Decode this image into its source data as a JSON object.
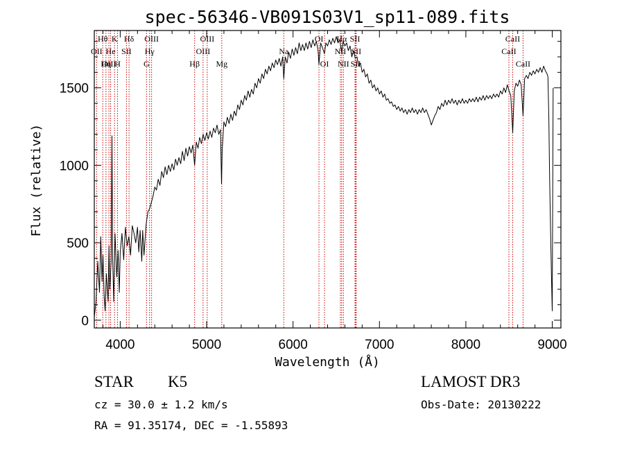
{
  "chart_data": {
    "type": "line",
    "title": "spec-56346-VB091S03V1_sp11-089.fits",
    "xlabel": "Wavelength (Å)",
    "ylabel": "Flux (relative)",
    "xlim": [
      3700,
      9100
    ],
    "ylim": [
      -50,
      1870
    ],
    "xticks": [
      4000,
      5000,
      6000,
      7000,
      8000,
      9000
    ],
    "yticks": [
      0,
      500,
      1000,
      1500
    ],
    "x_minor_step": 200,
    "y_minor_step": 100,
    "series": [
      {
        "name": "flux",
        "points": [
          [
            3700,
            20
          ],
          [
            3720,
            120
          ],
          [
            3740,
            380
          ],
          [
            3760,
            180
          ],
          [
            3775,
            540
          ],
          [
            3790,
            250
          ],
          [
            3800,
            420
          ],
          [
            3815,
            150
          ],
          [
            3825,
            60
          ],
          [
            3840,
            300
          ],
          [
            3860,
            120
          ],
          [
            3870,
            480
          ],
          [
            3880,
            200
          ],
          [
            3895,
            380
          ],
          [
            3905,
            1190
          ],
          [
            3912,
            420
          ],
          [
            3925,
            120
          ],
          [
            3940,
            560
          ],
          [
            3960,
            280
          ],
          [
            3975,
            450
          ],
          [
            3990,
            180
          ],
          [
            4000,
            440
          ],
          [
            4020,
            560
          ],
          [
            4040,
            390
          ],
          [
            4060,
            600
          ],
          [
            4080,
            480
          ],
          [
            4100,
            540
          ],
          [
            4120,
            420
          ],
          [
            4140,
            610
          ],
          [
            4160,
            560
          ],
          [
            4180,
            500
          ],
          [
            4200,
            600
          ],
          [
            4215,
            440
          ],
          [
            4230,
            580
          ],
          [
            4250,
            380
          ],
          [
            4260,
            580
          ],
          [
            4275,
            420
          ],
          [
            4290,
            540
          ],
          [
            4300,
            620
          ],
          [
            4320,
            700
          ],
          [
            4340,
            720
          ],
          [
            4360,
            760
          ],
          [
            4380,
            800
          ],
          [
            4400,
            860
          ],
          [
            4420,
            840
          ],
          [
            4440,
            910
          ],
          [
            4460,
            870
          ],
          [
            4480,
            960
          ],
          [
            4500,
            920
          ],
          [
            4520,
            990
          ],
          [
            4540,
            940
          ],
          [
            4560,
            1000
          ],
          [
            4580,
            960
          ],
          [
            4600,
            1010
          ],
          [
            4620,
            970
          ],
          [
            4640,
            1040
          ],
          [
            4660,
            1000
          ],
          [
            4680,
            1050
          ],
          [
            4700,
            1010
          ],
          [
            4720,
            1090
          ],
          [
            4740,
            1030
          ],
          [
            4760,
            1110
          ],
          [
            4780,
            1060
          ],
          [
            4800,
            1120
          ],
          [
            4820,
            1080
          ],
          [
            4840,
            1130
          ],
          [
            4861,
            1000
          ],
          [
            4880,
            1150
          ],
          [
            4900,
            1110
          ],
          [
            4920,
            1180
          ],
          [
            4940,
            1140
          ],
          [
            4960,
            1200
          ],
          [
            4980,
            1160
          ],
          [
            5000,
            1210
          ],
          [
            5020,
            1170
          ],
          [
            5040,
            1220
          ],
          [
            5060,
            1180
          ],
          [
            5080,
            1240
          ],
          [
            5100,
            1210
          ],
          [
            5120,
            1260
          ],
          [
            5140,
            1200
          ],
          [
            5160,
            1230
          ],
          [
            5172,
            880
          ],
          [
            5180,
            1100
          ],
          [
            5200,
            1280
          ],
          [
            5220,
            1250
          ],
          [
            5240,
            1310
          ],
          [
            5260,
            1270
          ],
          [
            5280,
            1330
          ],
          [
            5300,
            1290
          ],
          [
            5320,
            1350
          ],
          [
            5340,
            1320
          ],
          [
            5360,
            1390
          ],
          [
            5380,
            1360
          ],
          [
            5400,
            1420
          ],
          [
            5420,
            1390
          ],
          [
            5440,
            1450
          ],
          [
            5460,
            1420
          ],
          [
            5480,
            1480
          ],
          [
            5500,
            1440
          ],
          [
            5520,
            1490
          ],
          [
            5540,
            1460
          ],
          [
            5560,
            1530
          ],
          [
            5580,
            1500
          ],
          [
            5600,
            1560
          ],
          [
            5620,
            1530
          ],
          [
            5640,
            1590
          ],
          [
            5660,
            1560
          ],
          [
            5680,
            1620
          ],
          [
            5700,
            1590
          ],
          [
            5720,
            1640
          ],
          [
            5740,
            1610
          ],
          [
            5760,
            1660
          ],
          [
            5780,
            1630
          ],
          [
            5800,
            1680
          ],
          [
            5820,
            1650
          ],
          [
            5840,
            1690
          ],
          [
            5860,
            1640
          ],
          [
            5880,
            1700
          ],
          [
            5893,
            1560
          ],
          [
            5910,
            1700
          ],
          [
            5930,
            1660
          ],
          [
            5950,
            1730
          ],
          [
            5970,
            1690
          ],
          [
            5990,
            1750
          ],
          [
            6010,
            1710
          ],
          [
            6030,
            1760
          ],
          [
            6050,
            1720
          ],
          [
            6070,
            1790
          ],
          [
            6090,
            1740
          ],
          [
            6110,
            1780
          ],
          [
            6130,
            1740
          ],
          [
            6150,
            1790
          ],
          [
            6170,
            1750
          ],
          [
            6190,
            1800
          ],
          [
            6210,
            1760
          ],
          [
            6230,
            1810
          ],
          [
            6250,
            1770
          ],
          [
            6270,
            1800
          ],
          [
            6290,
            1740
          ],
          [
            6300,
            1650
          ],
          [
            6320,
            1790
          ],
          [
            6340,
            1760
          ],
          [
            6364,
            1720
          ],
          [
            6380,
            1790
          ],
          [
            6400,
            1770
          ],
          [
            6420,
            1810
          ],
          [
            6440,
            1780
          ],
          [
            6460,
            1820
          ],
          [
            6480,
            1790
          ],
          [
            6500,
            1830
          ],
          [
            6520,
            1790
          ],
          [
            6540,
            1810
          ],
          [
            6563,
            1730
          ],
          [
            6580,
            1800
          ],
          [
            6600,
            1770
          ],
          [
            6620,
            1790
          ],
          [
            6640,
            1740
          ],
          [
            6660,
            1770
          ],
          [
            6680,
            1700
          ],
          [
            6700,
            1740
          ],
          [
            6720,
            1690
          ],
          [
            6740,
            1700
          ],
          [
            6760,
            1640
          ],
          [
            6780,
            1660
          ],
          [
            6800,
            1600
          ],
          [
            6820,
            1620
          ],
          [
            6840,
            1570
          ],
          [
            6860,
            1590
          ],
          [
            6880,
            1530
          ],
          [
            6900,
            1550
          ],
          [
            6920,
            1500
          ],
          [
            6940,
            1520
          ],
          [
            6960,
            1480
          ],
          [
            6980,
            1500
          ],
          [
            7000,
            1460
          ],
          [
            7020,
            1480
          ],
          [
            7040,
            1440
          ],
          [
            7060,
            1460
          ],
          [
            7080,
            1420
          ],
          [
            7100,
            1430
          ],
          [
            7120,
            1400
          ],
          [
            7140,
            1410
          ],
          [
            7160,
            1380
          ],
          [
            7180,
            1390
          ],
          [
            7200,
            1360
          ],
          [
            7220,
            1380
          ],
          [
            7240,
            1350
          ],
          [
            7260,
            1370
          ],
          [
            7280,
            1340
          ],
          [
            7300,
            1360
          ],
          [
            7320,
            1330
          ],
          [
            7340,
            1360
          ],
          [
            7360,
            1340
          ],
          [
            7380,
            1370
          ],
          [
            7400,
            1340
          ],
          [
            7420,
            1360
          ],
          [
            7440,
            1330
          ],
          [
            7460,
            1360
          ],
          [
            7480,
            1340
          ],
          [
            7500,
            1370
          ],
          [
            7520,
            1340
          ],
          [
            7540,
            1360
          ],
          [
            7560,
            1330
          ],
          [
            7580,
            1300
          ],
          [
            7600,
            1260
          ],
          [
            7620,
            1290
          ],
          [
            7640,
            1320
          ],
          [
            7660,
            1340
          ],
          [
            7680,
            1380
          ],
          [
            7700,
            1360
          ],
          [
            7720,
            1400
          ],
          [
            7740,
            1380
          ],
          [
            7760,
            1420
          ],
          [
            7780,
            1390
          ],
          [
            7800,
            1420
          ],
          [
            7820,
            1400
          ],
          [
            7840,
            1430
          ],
          [
            7860,
            1400
          ],
          [
            7880,
            1420
          ],
          [
            7900,
            1390
          ],
          [
            7920,
            1420
          ],
          [
            7940,
            1400
          ],
          [
            7960,
            1430
          ],
          [
            7980,
            1400
          ],
          [
            8000,
            1420
          ],
          [
            8020,
            1400
          ],
          [
            8040,
            1430
          ],
          [
            8060,
            1410
          ],
          [
            8080,
            1430
          ],
          [
            8100,
            1410
          ],
          [
            8120,
            1440
          ],
          [
            8140,
            1410
          ],
          [
            8160,
            1440
          ],
          [
            8180,
            1420
          ],
          [
            8200,
            1450
          ],
          [
            8220,
            1420
          ],
          [
            8240,
            1450
          ],
          [
            8260,
            1430
          ],
          [
            8280,
            1450
          ],
          [
            8300,
            1430
          ],
          [
            8320,
            1460
          ],
          [
            8340,
            1440
          ],
          [
            8360,
            1460
          ],
          [
            8380,
            1440
          ],
          [
            8400,
            1480
          ],
          [
            8420,
            1460
          ],
          [
            8440,
            1500
          ],
          [
            8460,
            1470
          ],
          [
            8480,
            1520
          ],
          [
            8500,
            1480
          ],
          [
            8520,
            1450
          ],
          [
            8542,
            1210
          ],
          [
            8560,
            1480
          ],
          [
            8580,
            1530
          ],
          [
            8600,
            1510
          ],
          [
            8620,
            1550
          ],
          [
            8640,
            1520
          ],
          [
            8662,
            1320
          ],
          [
            8680,
            1560
          ],
          [
            8700,
            1580
          ],
          [
            8720,
            1560
          ],
          [
            8740,
            1600
          ],
          [
            8760,
            1580
          ],
          [
            8780,
            1610
          ],
          [
            8800,
            1590
          ],
          [
            8820,
            1620
          ],
          [
            8840,
            1600
          ],
          [
            8860,
            1630
          ],
          [
            8880,
            1600
          ],
          [
            8900,
            1640
          ],
          [
            8920,
            1610
          ],
          [
            8940,
            1590
          ],
          [
            8950,
            1570
          ],
          [
            8960,
            1300
          ],
          [
            8970,
            900
          ],
          [
            8980,
            600
          ],
          [
            8990,
            300
          ],
          [
            9000,
            60
          ],
          [
            9010,
            1500
          ]
        ]
      }
    ],
    "lines": [
      {
        "label": "Hθ",
        "x": 3798,
        "row": 0
      },
      {
        "label": "OII",
        "x": 3727,
        "row": 1
      },
      {
        "label": "OIII",
        "x": 3869,
        "row": 2
      },
      {
        "label": "He",
        "x": 3889,
        "row": 1
      },
      {
        "label": "Hη",
        "x": 3835,
        "row": 2
      },
      {
        "label": "K",
        "x": 3934,
        "row": 0
      },
      {
        "label": "SII",
        "x": 4072,
        "row": 1
      },
      {
        "label": "H",
        "x": 3969,
        "row": 2
      },
      {
        "label": "Hδ",
        "x": 4102,
        "row": 0
      },
      {
        "label": "OIII",
        "x": 4363,
        "row": 0
      },
      {
        "label": "Hγ",
        "x": 4340,
        "row": 1
      },
      {
        "label": "G",
        "x": 4304,
        "row": 2
      },
      {
        "label": "OIII",
        "x": 5007,
        "row": 0
      },
      {
        "label": "OIII",
        "x": 4959,
        "row": 1
      },
      {
        "label": "Hβ",
        "x": 4861,
        "row": 2
      },
      {
        "label": "Mg",
        "x": 5175,
        "row": 2
      },
      {
        "label": "Na",
        "x": 5893,
        "row": 1
      },
      {
        "label": "OI",
        "x": 6300,
        "row": 0
      },
      {
        "label": "OI",
        "x": 6364,
        "row": 2
      },
      {
        "label": "NII",
        "x": 6548,
        "row": 1
      },
      {
        "label": "Hα",
        "x": 6563,
        "row": 0
      },
      {
        "label": "NII",
        "x": 6583,
        "row": 2
      },
      {
        "label": "SII",
        "x": 6717,
        "row": 0
      },
      {
        "label": "SII",
        "x": 6731,
        "row": 1
      },
      {
        "label": "SII",
        "x": 6725,
        "row": 2
      },
      {
        "label": "CaII",
        "x": 8542,
        "row": 0
      },
      {
        "label": "CaII",
        "x": 8498,
        "row": 1
      },
      {
        "label": "CaII",
        "x": 8662,
        "row": 2
      }
    ]
  },
  "info": {
    "object_class": "STAR",
    "subclass": "K5",
    "survey": "LAMOST DR3",
    "redshift_text": "cz = 30.0 ± 1.2 km/s",
    "obs_date": "Obs-Date: 20130222",
    "coords": "RA =  91.35174, DEC =  -1.55893"
  }
}
